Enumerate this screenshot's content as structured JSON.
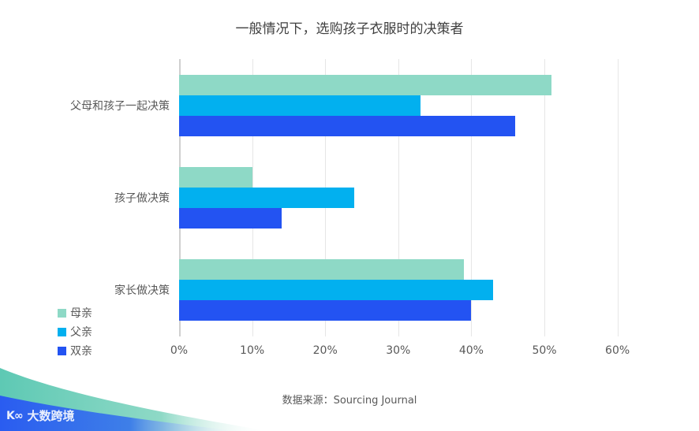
{
  "title": "一般情况下，选购孩子衣服时的决策者",
  "source": "数据来源：Sourcing Journal",
  "logo": {
    "mark": "K∞",
    "text": "大数跨境"
  },
  "colors": {
    "mother": "#8ed9c6",
    "father": "#02b0ef",
    "both": "#2353f2"
  },
  "legend": [
    {
      "label": "母亲",
      "color": "#8ed9c6"
    },
    {
      "label": "父亲",
      "color": "#02b0ef"
    },
    {
      "label": "双亲",
      "color": "#2353f2"
    }
  ],
  "x_ticks": [
    "0%",
    "10%",
    "20%",
    "30%",
    "40%",
    "50%",
    "60%"
  ],
  "categories": [
    "父母和孩子一起决策",
    "孩子做决策",
    "家长做决策"
  ],
  "chart_data": {
    "type": "bar",
    "orientation": "horizontal",
    "title": "一般情况下，选购孩子衣服时的决策者",
    "categories": [
      "父母和孩子一起决策",
      "孩子做决策",
      "家长做决策"
    ],
    "series": [
      {
        "name": "母亲",
        "color": "#8ed9c6",
        "values": [
          51,
          10,
          39
        ]
      },
      {
        "name": "父亲",
        "color": "#02b0ef",
        "values": [
          33,
          24,
          43
        ]
      },
      {
        "name": "双亲",
        "color": "#2353f2",
        "values": [
          46,
          14,
          40
        ]
      }
    ],
    "xlabel": "",
    "ylabel": "",
    "xlim": [
      0,
      60
    ],
    "x_tick_labels": [
      "0%",
      "10%",
      "20%",
      "30%",
      "40%",
      "50%",
      "60%"
    ],
    "unit": "%",
    "grid": true,
    "legend_position": "bottom-left",
    "annotation": "数据来源：Sourcing Journal"
  }
}
